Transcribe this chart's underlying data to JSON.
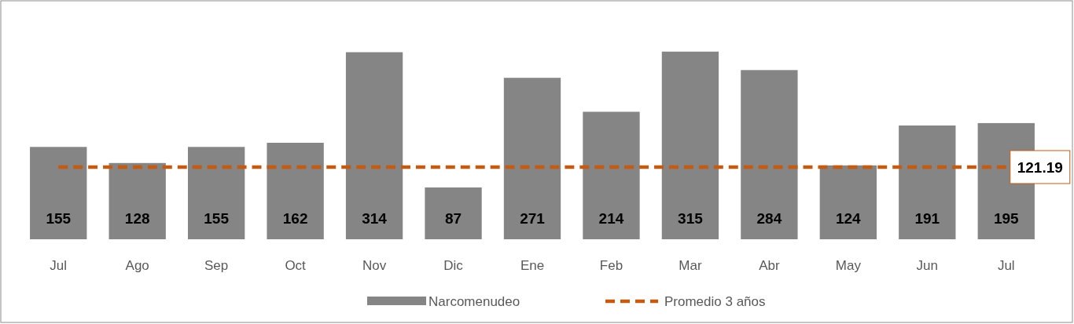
{
  "chart_data": {
    "type": "bar",
    "categories": [
      "Jul",
      "Ago",
      "Sep",
      "Oct",
      "Nov",
      "Dic",
      "Ene",
      "Feb",
      "Mar",
      "Abr",
      "May",
      "Jun",
      "Jul"
    ],
    "series": [
      {
        "name": "Narcomenudeo",
        "color": "#858585",
        "values": [
          155,
          128,
          155,
          162,
          314,
          87,
          271,
          214,
          315,
          284,
          124,
          191,
          195
        ]
      },
      {
        "name": "Promedio 3 años",
        "type": "line",
        "color": "#c55a11",
        "line_style": "dashed",
        "values": [
          121.19,
          121.19,
          121.19,
          121.19,
          121.19,
          121.19,
          121.19,
          121.19,
          121.19,
          121.19,
          121.19,
          121.19,
          121.19
        ],
        "value_labels": [
          null,
          null,
          null,
          null,
          null,
          null,
          null,
          null,
          null,
          null,
          null,
          null,
          "121.19"
        ]
      }
    ],
    "data_labels": true,
    "legend": "bottom"
  }
}
